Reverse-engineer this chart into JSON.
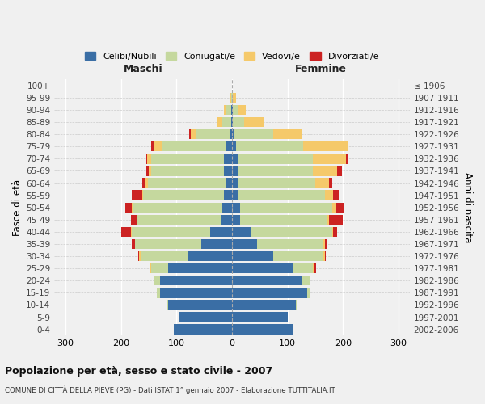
{
  "age_groups": [
    "0-4",
    "5-9",
    "10-14",
    "15-19",
    "20-24",
    "25-29",
    "30-34",
    "35-39",
    "40-44",
    "45-49",
    "50-54",
    "55-59",
    "60-64",
    "65-69",
    "70-74",
    "75-79",
    "80-84",
    "85-89",
    "90-94",
    "95-99",
    "100+"
  ],
  "birth_years": [
    "2002-2006",
    "1997-2001",
    "1992-1996",
    "1987-1991",
    "1982-1986",
    "1977-1981",
    "1972-1976",
    "1967-1971",
    "1962-1966",
    "1957-1961",
    "1952-1956",
    "1947-1951",
    "1942-1946",
    "1937-1941",
    "1932-1936",
    "1927-1931",
    "1922-1926",
    "1917-1921",
    "1912-1916",
    "1907-1911",
    "≤ 1906"
  ],
  "maschi": {
    "celibi": [
      105,
      95,
      115,
      130,
      130,
      115,
      80,
      55,
      40,
      20,
      18,
      15,
      12,
      15,
      15,
      10,
      5,
      2,
      2,
      0,
      0
    ],
    "coniugati": [
      0,
      0,
      2,
      5,
      10,
      30,
      85,
      120,
      140,
      150,
      160,
      145,
      140,
      130,
      130,
      115,
      60,
      15,
      8,
      2,
      0
    ],
    "vedovi": [
      0,
      0,
      0,
      0,
      0,
      2,
      2,
      0,
      2,
      2,
      2,
      2,
      5,
      5,
      8,
      15,
      10,
      10,
      5,
      2,
      0
    ],
    "divorziati": [
      0,
      0,
      0,
      0,
      0,
      2,
      2,
      5,
      18,
      10,
      12,
      18,
      5,
      5,
      2,
      5,
      2,
      0,
      0,
      0,
      0
    ]
  },
  "femmine": {
    "nubili": [
      110,
      100,
      115,
      135,
      125,
      110,
      75,
      45,
      35,
      15,
      15,
      12,
      10,
      10,
      10,
      8,
      5,
      2,
      2,
      0,
      0
    ],
    "coniugate": [
      0,
      0,
      2,
      5,
      15,
      35,
      90,
      120,
      145,
      155,
      165,
      155,
      140,
      135,
      135,
      120,
      70,
      20,
      8,
      2,
      0
    ],
    "vedove": [
      0,
      0,
      0,
      0,
      0,
      2,
      2,
      2,
      2,
      5,
      8,
      15,
      25,
      45,
      60,
      80,
      50,
      35,
      15,
      5,
      0
    ],
    "divorziate": [
      0,
      0,
      0,
      0,
      0,
      5,
      2,
      5,
      8,
      25,
      15,
      10,
      5,
      8,
      5,
      2,
      2,
      0,
      0,
      0,
      0
    ]
  },
  "colors": {
    "celibi": "#3a6ea5",
    "coniugati": "#c5d89e",
    "vedovi": "#f5c96a",
    "divorziati": "#cc2222"
  },
  "xlim": 320,
  "title": "Popolazione per età, sesso e stato civile - 2007",
  "subtitle": "COMUNE DI CITTÀ DELLA PIEVE (PG) - Dati ISTAT 1° gennaio 2007 - Elaborazione TUTTITALIA.IT",
  "ylabel_left": "Fasce di età",
  "ylabel_right": "Anni di nascita",
  "legend_labels": [
    "Celibi/Nubili",
    "Coniugati/e",
    "Vedovi/e",
    "Divorziati/e"
  ],
  "bg_color": "#f0f0f0"
}
